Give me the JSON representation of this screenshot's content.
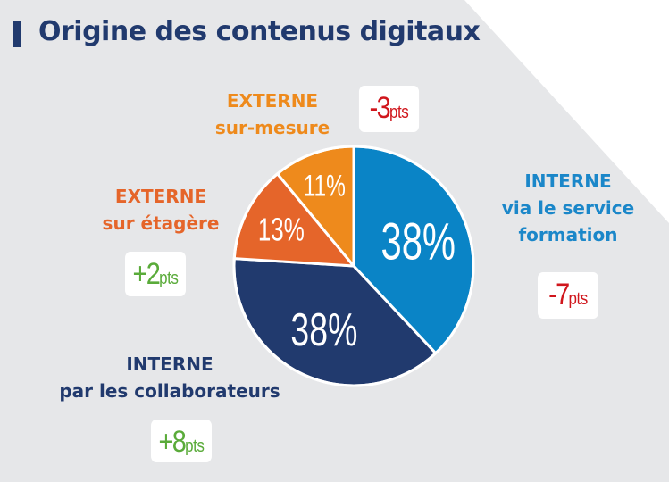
{
  "title": "Origine des contenus digitaux",
  "colors": {
    "background": "#e6e7e9",
    "title": "#213a6e",
    "positive": "#5aab3a",
    "negative": "#d0161c"
  },
  "chart_data": {
    "type": "pie",
    "title": "Origine des contenus digitaux",
    "slices": [
      {
        "label_line1": "INTERNE",
        "label_line2": "via le service formation",
        "value": 38,
        "value_label": "38%",
        "change": "-7",
        "change_unit": "pts",
        "color": "#0a84c6"
      },
      {
        "label_line1": "INTERNE",
        "label_line2": "par les collaborateurs",
        "value": 38,
        "value_label": "38%",
        "change": "+8",
        "change_unit": "pts",
        "color": "#213a6e"
      },
      {
        "label_line1": "EXTERNE",
        "label_line2": "sur étagère",
        "value": 13,
        "value_label": "13%",
        "change": "+2",
        "change_unit": "pts",
        "color": "#e5652a"
      },
      {
        "label_line1": "EXTERNE",
        "label_line2": "sur-mesure",
        "value": 11,
        "value_label": "11%",
        "change": "-3",
        "change_unit": "pts",
        "color": "#ee8a1c"
      }
    ]
  }
}
